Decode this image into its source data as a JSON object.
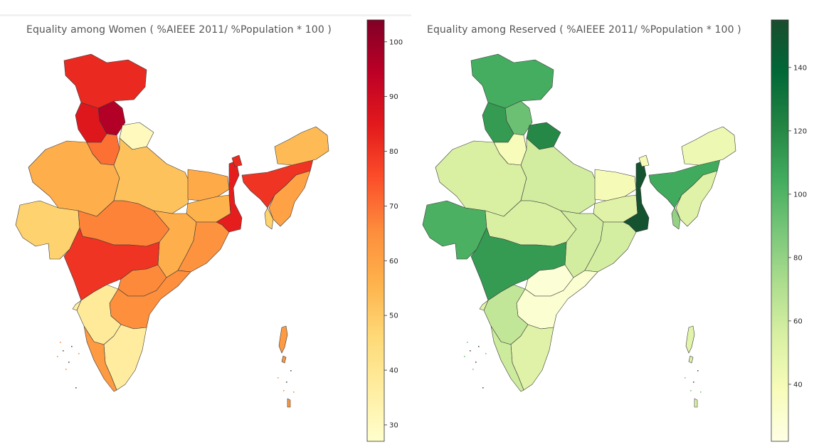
{
  "charts": [
    {
      "id": "women",
      "title": "Equality among Women ( %AIEEE 2011/ %Population * 100 )",
      "colormap": [
        "#ffffcc",
        "#ffeda0",
        "#fed976",
        "#feb24c",
        "#fd8d3c",
        "#fc4e2a",
        "#e31a1c",
        "#bd0026",
        "#800026"
      ],
      "colorbar": {
        "min": 27,
        "max": 104,
        "ticks": [
          30,
          40,
          50,
          60,
          70,
          80,
          90,
          100
        ]
      }
    },
    {
      "id": "reserved",
      "title": "Equality among Reserved ( %AIEEE 2011/ %Population * 100 )",
      "colormap": [
        "#ffffe5",
        "#f7fcb9",
        "#d9f0a3",
        "#addd8e",
        "#78c679",
        "#41ab5d",
        "#238443",
        "#006837",
        "#1a4d2e"
      ],
      "colorbar": {
        "min": 22,
        "max": 155,
        "ticks": [
          40,
          60,
          80,
          100,
          120,
          140
        ]
      }
    }
  ],
  "chart_data": [
    {
      "type": "choropleth",
      "title": "Equality among Women ( %AIEEE 2011/ %Population * 100 )",
      "colorbar_range": [
        27,
        104
      ],
      "regions": [
        {
          "key": "JK",
          "value": 82
        },
        {
          "key": "HP",
          "value": 96
        },
        {
          "key": "PB",
          "value": 86
        },
        {
          "key": "UK",
          "value": 30
        },
        {
          "key": "HR",
          "value": 70
        },
        {
          "key": "RJ",
          "value": 57
        },
        {
          "key": "UP",
          "value": 52
        },
        {
          "key": "BR",
          "value": 58
        },
        {
          "key": "JH",
          "value": 56
        },
        {
          "key": "WB",
          "value": 84
        },
        {
          "key": "SK",
          "value": 82
        },
        {
          "key": "AS",
          "value": 80
        },
        {
          "key": "AR",
          "value": 54
        },
        {
          "key": "NE",
          "value": 60
        },
        {
          "key": "TR",
          "value": 48
        },
        {
          "key": "GJ",
          "value": 48
        },
        {
          "key": "MP",
          "value": 67
        },
        {
          "key": "CG",
          "value": 57
        },
        {
          "key": "OD",
          "value": 64
        },
        {
          "key": "MH",
          "value": 80
        },
        {
          "key": "TG",
          "value": 66
        },
        {
          "key": "AP",
          "value": 65
        },
        {
          "key": "KA",
          "value": 38
        },
        {
          "key": "GA",
          "value": 36
        },
        {
          "key": "TN",
          "value": 37
        },
        {
          "key": "KL",
          "value": 62
        },
        {
          "key": "AN",
          "value": 62
        }
      ]
    },
    {
      "type": "choropleth",
      "title": "Equality among Reserved ( %AIEEE 2011/ %Population * 100 )",
      "colorbar_range": [
        22,
        155
      ],
      "regions": [
        {
          "key": "JK",
          "value": 104
        },
        {
          "key": "HP",
          "value": 92
        },
        {
          "key": "PB",
          "value": 112
        },
        {
          "key": "UK",
          "value": 120
        },
        {
          "key": "HR",
          "value": 38
        },
        {
          "key": "RJ",
          "value": 55
        },
        {
          "key": "UP",
          "value": 58
        },
        {
          "key": "BR",
          "value": 40
        },
        {
          "key": "JH",
          "value": 52
        },
        {
          "key": "WB",
          "value": 152
        },
        {
          "key": "SK",
          "value": 40
        },
        {
          "key": "AS",
          "value": 105
        },
        {
          "key": "AR",
          "value": 44
        },
        {
          "key": "NE",
          "value": 52
        },
        {
          "key": "TR",
          "value": 80
        },
        {
          "key": "GJ",
          "value": 102
        },
        {
          "key": "MP",
          "value": 55
        },
        {
          "key": "CG",
          "value": 58
        },
        {
          "key": "OD",
          "value": 57
        },
        {
          "key": "MH",
          "value": 112
        },
        {
          "key": "TG",
          "value": 28
        },
        {
          "key": "AP",
          "value": 30
        },
        {
          "key": "KA",
          "value": 64
        },
        {
          "key": "GA",
          "value": 50
        },
        {
          "key": "TN",
          "value": 52
        },
        {
          "key": "KL",
          "value": 60
        },
        {
          "key": "AN",
          "value": 50
        }
      ]
    }
  ]
}
